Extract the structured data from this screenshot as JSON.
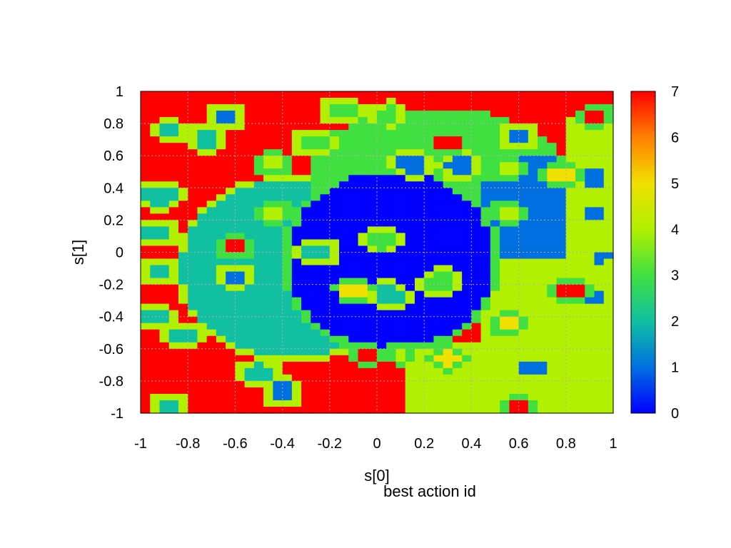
{
  "chart_data": {
    "type": "heatmap",
    "title": "best action id",
    "xlabel": "s[0]",
    "ylabel": "s[1]",
    "xlim": [
      -1,
      1
    ],
    "ylim": [
      -1,
      1
    ],
    "x_ticks": [
      "-1",
      "-0.8",
      "-0.6",
      "-0.4",
      "-0.2",
      "0",
      "0.2",
      "0.4",
      "0.6",
      "0.8",
      "1"
    ],
    "y_ticks": [
      "-1",
      "-0.8",
      "-0.6",
      "-0.4",
      "-0.2",
      "0",
      "0.2",
      "0.4",
      "0.6",
      "0.8",
      "1"
    ],
    "colorbar": {
      "range": [
        0,
        7
      ],
      "ticks": [
        "0",
        "1",
        "2",
        "3",
        "4",
        "5",
        "6",
        "7"
      ],
      "colormap": [
        "#0000ff",
        "#0070e0",
        "#10c0a0",
        "#40e040",
        "#b0f000",
        "#f0e000",
        "#ff8000",
        "#ff0000"
      ]
    },
    "grid": true,
    "grid_resolution": 50,
    "regions": {
      "background": 7,
      "right_region": {
        "value": 4,
        "description_value": "x > 0.12 and y < 0"
      },
      "upper_right": {
        "value": 1
      },
      "upper_band": {
        "value": 3
      },
      "left_ring": {
        "value": 2
      },
      "center": {
        "value": 0
      }
    },
    "blobs": [
      {
        "x": -0.92,
        "y": 0.35,
        "r": 0.07,
        "v": 2
      },
      {
        "x": -0.93,
        "y": 0.12,
        "r": 0.06,
        "v": 2
      },
      {
        "x": -0.92,
        "y": -0.12,
        "r": 0.05,
        "v": 2
      },
      {
        "x": -0.95,
        "y": -0.4,
        "r": 0.06,
        "v": 2
      },
      {
        "x": -0.82,
        "y": -0.52,
        "r": 0.06,
        "v": 2
      },
      {
        "x": -0.87,
        "y": 0.75,
        "r": 0.05,
        "v": 2
      },
      {
        "x": -0.72,
        "y": 0.71,
        "r": 0.06,
        "v": 2
      },
      {
        "x": -0.64,
        "y": 0.84,
        "r": 0.06,
        "v": 1
      },
      {
        "x": -0.44,
        "y": 0.55,
        "r": 0.05,
        "v": 4
      },
      {
        "x": -0.27,
        "y": 0.68,
        "r": 0.06,
        "v": 3
      },
      {
        "x": -0.15,
        "y": 0.88,
        "r": 0.06,
        "v": 3
      },
      {
        "x": 0.05,
        "y": 0.86,
        "r": 0.05,
        "v": 3
      },
      {
        "x": -0.6,
        "y": 0.03,
        "r": 0.05,
        "v": 7
      },
      {
        "x": -0.6,
        "y": -0.15,
        "r": 0.05,
        "v": 1
      },
      {
        "x": -0.43,
        "y": 0.25,
        "r": 0.05,
        "v": 4
      },
      {
        "x": -0.25,
        "y": 0.0,
        "r": 0.06,
        "v": 2
      },
      {
        "x": 0.02,
        "y": 0.08,
        "r": 0.06,
        "v": 3
      },
      {
        "x": -0.1,
        "y": -0.23,
        "r": 0.05,
        "v": 5
      },
      {
        "x": 0.05,
        "y": -0.27,
        "r": 0.06,
        "v": 2
      },
      {
        "x": 0.27,
        "y": -0.19,
        "r": 0.06,
        "v": 3
      },
      {
        "x": -0.05,
        "y": -0.63,
        "r": 0.05,
        "v": 7
      },
      {
        "x": 0.1,
        "y": -0.63,
        "r": 0.04,
        "v": 4
      },
      {
        "x": 0.3,
        "y": -0.66,
        "r": 0.05,
        "v": 5
      },
      {
        "x": 0.3,
        "y": 0.68,
        "r": 0.05,
        "v": 7
      },
      {
        "x": 0.55,
        "y": 0.25,
        "r": 0.05,
        "v": 4
      },
      {
        "x": 0.15,
        "y": 0.55,
        "r": 0.06,
        "v": 1
      },
      {
        "x": 0.35,
        "y": 0.54,
        "r": 0.06,
        "v": 1
      },
      {
        "x": 0.55,
        "y": 0.52,
        "r": 0.05,
        "v": 4
      },
      {
        "x": 0.6,
        "y": 0.72,
        "r": 0.05,
        "v": 1
      },
      {
        "x": 0.78,
        "y": 0.48,
        "r": 0.05,
        "v": 5
      },
      {
        "x": 0.92,
        "y": 0.47,
        "r": 0.06,
        "v": 1
      },
      {
        "x": 0.93,
        "y": 0.85,
        "r": 0.05,
        "v": 7
      },
      {
        "x": 0.93,
        "y": 0.25,
        "r": 0.05,
        "v": 1
      },
      {
        "x": 0.95,
        "y": -0.03,
        "r": 0.04,
        "v": 1
      },
      {
        "x": 0.82,
        "y": -0.24,
        "r": 0.06,
        "v": 7
      },
      {
        "x": 0.93,
        "y": -0.27,
        "r": 0.05,
        "v": 1
      },
      {
        "x": 0.55,
        "y": -0.45,
        "r": 0.05,
        "v": 5
      },
      {
        "x": 0.65,
        "y": -0.72,
        "r": 0.06,
        "v": 1
      },
      {
        "x": -0.5,
        "y": -0.75,
        "r": 0.06,
        "v": 2
      },
      {
        "x": -0.4,
        "y": -0.87,
        "r": 0.06,
        "v": 1
      },
      {
        "x": -0.88,
        "y": -0.97,
        "r": 0.06,
        "v": 2
      },
      {
        "x": 0.6,
        "y": -0.97,
        "r": 0.05,
        "v": 7
      }
    ]
  }
}
